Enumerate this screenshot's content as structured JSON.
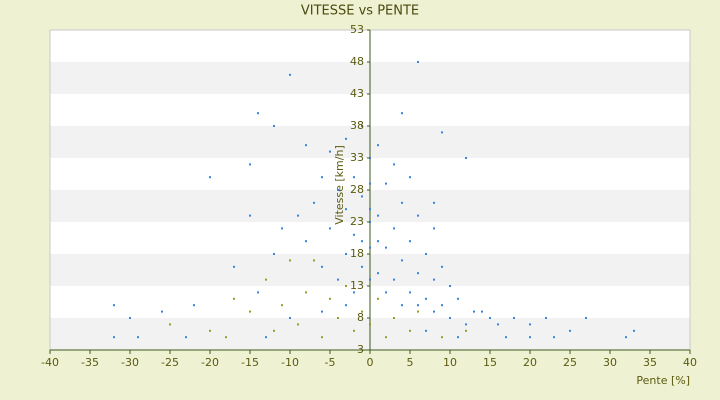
{
  "chart_data": {
    "type": "scatter",
    "title": "VITESSE vs PENTE",
    "x_label": "Pente [%]",
    "y_label": "Vitesse [km/h]",
    "xlim": [
      -40,
      40
    ],
    "xticks": [
      -40,
      -35,
      -30,
      -25,
      -20,
      -15,
      -10,
      -5,
      0,
      5,
      10,
      15,
      20,
      25,
      30,
      35,
      40
    ],
    "ylim": [
      3,
      53
    ],
    "yticks": [
      3,
      8,
      13,
      18,
      23,
      28,
      33,
      38,
      43,
      48,
      53
    ],
    "grid": "bands",
    "series": [
      {
        "color": "#3b84d6",
        "x": [
          -10,
          6,
          -14,
          4,
          -12,
          9,
          12,
          -15,
          -20,
          -8,
          -5,
          -3,
          -1,
          1,
          3,
          5,
          -6,
          -4,
          -2,
          0,
          2,
          4,
          6,
          8,
          -7,
          -9,
          -11,
          -3,
          -1,
          1,
          3,
          5,
          7,
          9,
          -5,
          -2,
          0,
          2,
          4,
          6,
          8,
          10,
          -8,
          -12,
          -17,
          -3,
          -1,
          1,
          3,
          5,
          7,
          9,
          11,
          13,
          15,
          -6,
          -4,
          -14,
          -22,
          -26,
          -30,
          -32,
          2,
          4,
          6,
          8,
          10,
          12,
          14,
          16,
          18,
          20,
          22,
          25,
          27,
          33,
          17,
          20,
          23,
          -2,
          0,
          0,
          0,
          0,
          -1,
          1,
          -3,
          -6,
          -10,
          -13,
          -23,
          -29,
          -32,
          32,
          11,
          7,
          -15,
          8
        ],
        "values": [
          46,
          48,
          40,
          40,
          38,
          37,
          33,
          32,
          30,
          35,
          34,
          36,
          38,
          35,
          32,
          30,
          30,
          28,
          30,
          33,
          29,
          26,
          24,
          22,
          26,
          24,
          22,
          25,
          27,
          24,
          22,
          20,
          18,
          16,
          22,
          21,
          23,
          19,
          17,
          15,
          14,
          13,
          20,
          18,
          16,
          18,
          16,
          15,
          14,
          12,
          11,
          10,
          11,
          9,
          8,
          16,
          14,
          12,
          10,
          9,
          8,
          10,
          12,
          10,
          10,
          9,
          8,
          7,
          9,
          7,
          8,
          7,
          8,
          6,
          8,
          6,
          5,
          5,
          5,
          12,
          14,
          19,
          25,
          29,
          20,
          20,
          10,
          9,
          8,
          5,
          5,
          5,
          5,
          5,
          5,
          6,
          24,
          26
        ]
      },
      {
        "color": "#9c9a22",
        "x": [
          -25,
          -20,
          -17,
          -15,
          -13,
          -11,
          -9,
          -8,
          -7,
          -6,
          -5,
          -4,
          -3,
          -2,
          -1,
          0,
          1,
          2,
          3,
          5,
          6,
          9,
          12,
          -10,
          -12,
          -18
        ],
        "values": [
          7,
          6,
          11,
          9,
          14,
          10,
          7,
          12,
          17,
          5,
          11,
          8,
          13,
          6,
          9,
          7,
          11,
          5,
          8,
          6,
          9,
          5,
          6,
          17,
          6,
          5
        ]
      }
    ]
  }
}
